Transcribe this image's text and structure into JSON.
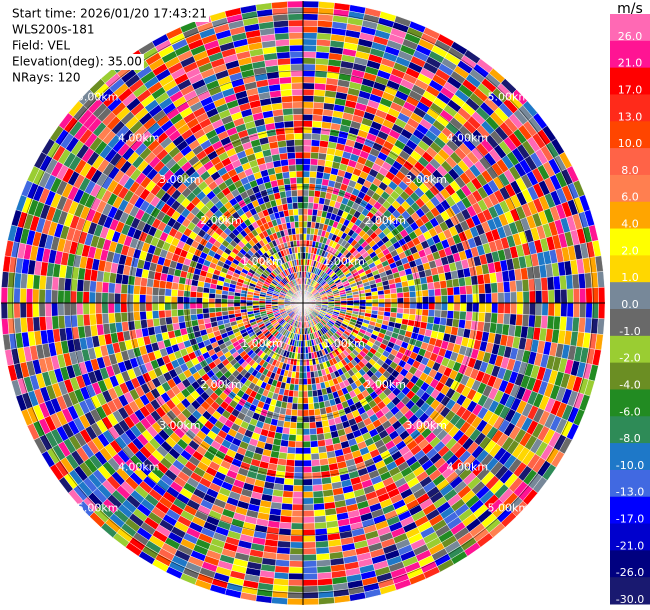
{
  "chart_data": {
    "type": "ppi",
    "info": [
      "Start time: 2026/01/20 17:43:21",
      "WLS200s-181",
      "Field: VEL",
      "Elevation(deg): 35.00",
      "NRays: 120"
    ],
    "colorbar_unit": "m/s",
    "colorbar_ticks": [
      {
        "value": 26,
        "label": "26.0"
      },
      {
        "value": 21,
        "label": "21.0"
      },
      {
        "value": 17,
        "label": "17.0"
      },
      {
        "value": 13,
        "label": "13.0"
      },
      {
        "value": 10,
        "label": "10.0"
      },
      {
        "value": 8,
        "label": "8.0"
      },
      {
        "value": 6,
        "label": "6.0"
      },
      {
        "value": 4,
        "label": "4.0"
      },
      {
        "value": 2,
        "label": "2.0"
      },
      {
        "value": 1,
        "label": "1.0"
      },
      {
        "value": 0,
        "label": "0.0"
      },
      {
        "value": -1,
        "label": "-1.0"
      },
      {
        "value": -2,
        "label": "-2.0"
      },
      {
        "value": -4,
        "label": "-4.0"
      },
      {
        "value": -6,
        "label": "-6.0"
      },
      {
        "value": -8,
        "label": "-8.0"
      },
      {
        "value": -10,
        "label": "-10.0"
      },
      {
        "value": -13,
        "label": "-13.0"
      },
      {
        "value": -17,
        "label": "-17.0"
      },
      {
        "value": -21,
        "label": "-21.0"
      },
      {
        "value": -26,
        "label": "-26.0"
      },
      {
        "value": -30,
        "label": "-30.0"
      }
    ],
    "colors": [
      "#ff69b4",
      "#ff1493",
      "#ff0000",
      "#ff2a1a",
      "#ff4500",
      "#ff6347",
      "#ff7f50",
      "#ffa500",
      "#ffff00",
      "#ffd700",
      "#778899",
      "#696969",
      "#9acd32",
      "#6b8e23",
      "#228b22",
      "#2e8b57",
      "#1e78c8",
      "#4169e1",
      "#0000ff",
      "#0000cd",
      "#000080",
      "#191970"
    ],
    "rlim": [
      0,
      5.2
    ],
    "rings": [
      {
        "value": 1,
        "label": "1.00km"
      },
      {
        "value": 2,
        "label": "2.00km"
      },
      {
        "value": 3,
        "label": "3.00km"
      },
      {
        "value": 4,
        "label": "4.00km"
      },
      {
        "value": 5,
        "label": "5.00km"
      }
    ]
  }
}
